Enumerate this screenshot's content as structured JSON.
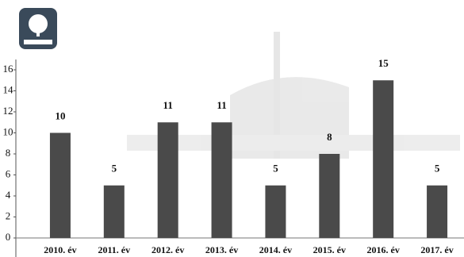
{
  "chart_data": {
    "type": "bar",
    "categories": [
      "2010. év",
      "2011. év",
      "2012. év",
      "2013. év",
      "2014. év",
      "2015. év",
      "2016. év",
      "2017. év"
    ],
    "values": [
      10,
      5,
      11,
      11,
      5,
      8,
      15,
      5
    ],
    "color": "#4a4a4a",
    "ylim": [
      0,
      16
    ],
    "yticks": [
      0,
      2,
      4,
      6,
      8,
      10,
      12,
      14,
      16
    ]
  }
}
